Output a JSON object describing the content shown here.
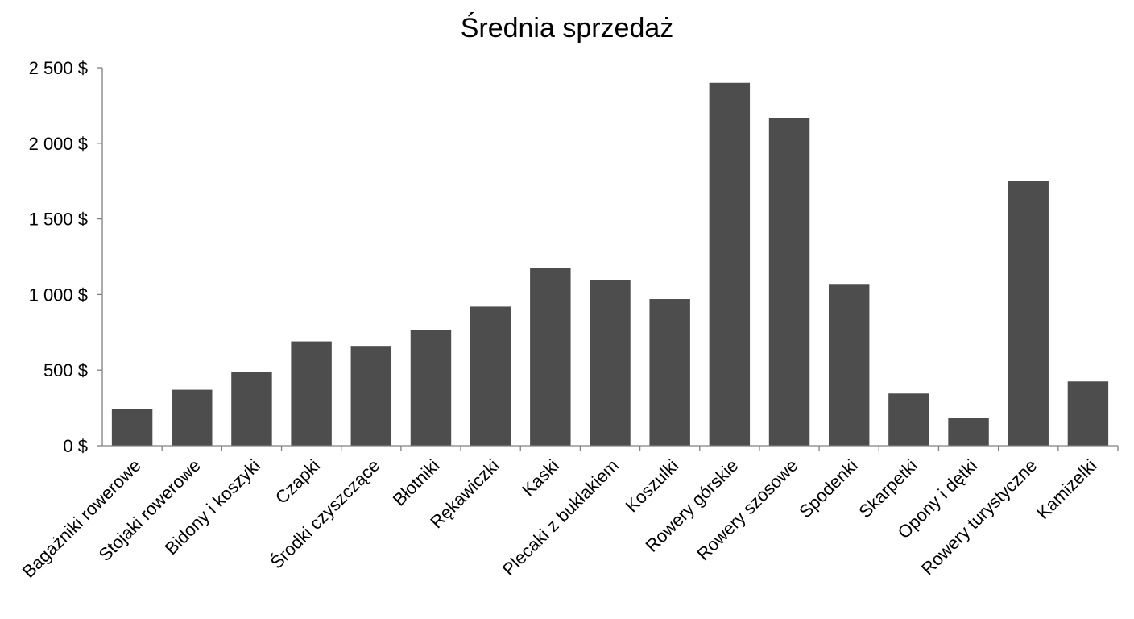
{
  "chart_data": {
    "type": "bar",
    "title": "Średnia sprzedaż",
    "xlabel": "",
    "ylabel": "",
    "categories": [
      "Bagażniki rowerowe",
      "Stojaki rowerowe",
      "Bidony i koszyki",
      "Czapki",
      "Środki czyszczące",
      "Błotniki",
      "Rękawiczki",
      "Kaski",
      "Plecaki z bukłakiem",
      "Koszulki",
      "Rowery górskie",
      "Rowery szosowe",
      "Spodenki",
      "Skarpetki",
      "Opony i dętki",
      "Rowery turystyczne",
      "Kamizelki"
    ],
    "values": [
      240,
      370,
      490,
      690,
      660,
      765,
      920,
      1175,
      1095,
      970,
      2400,
      2165,
      1070,
      345,
      185,
      1750,
      425
    ],
    "ylim": [
      0,
      2500
    ],
    "yticks": [
      0,
      500,
      1000,
      1500,
      2000,
      2500
    ],
    "ytick_labels": [
      "0 $",
      "500 $",
      "1 000 $",
      "1 500 $",
      "2 000 $",
      "2 500 $"
    ],
    "grid": false,
    "legend": "none",
    "bar_color": "#4d4d4d",
    "axis_color": "#808080"
  }
}
